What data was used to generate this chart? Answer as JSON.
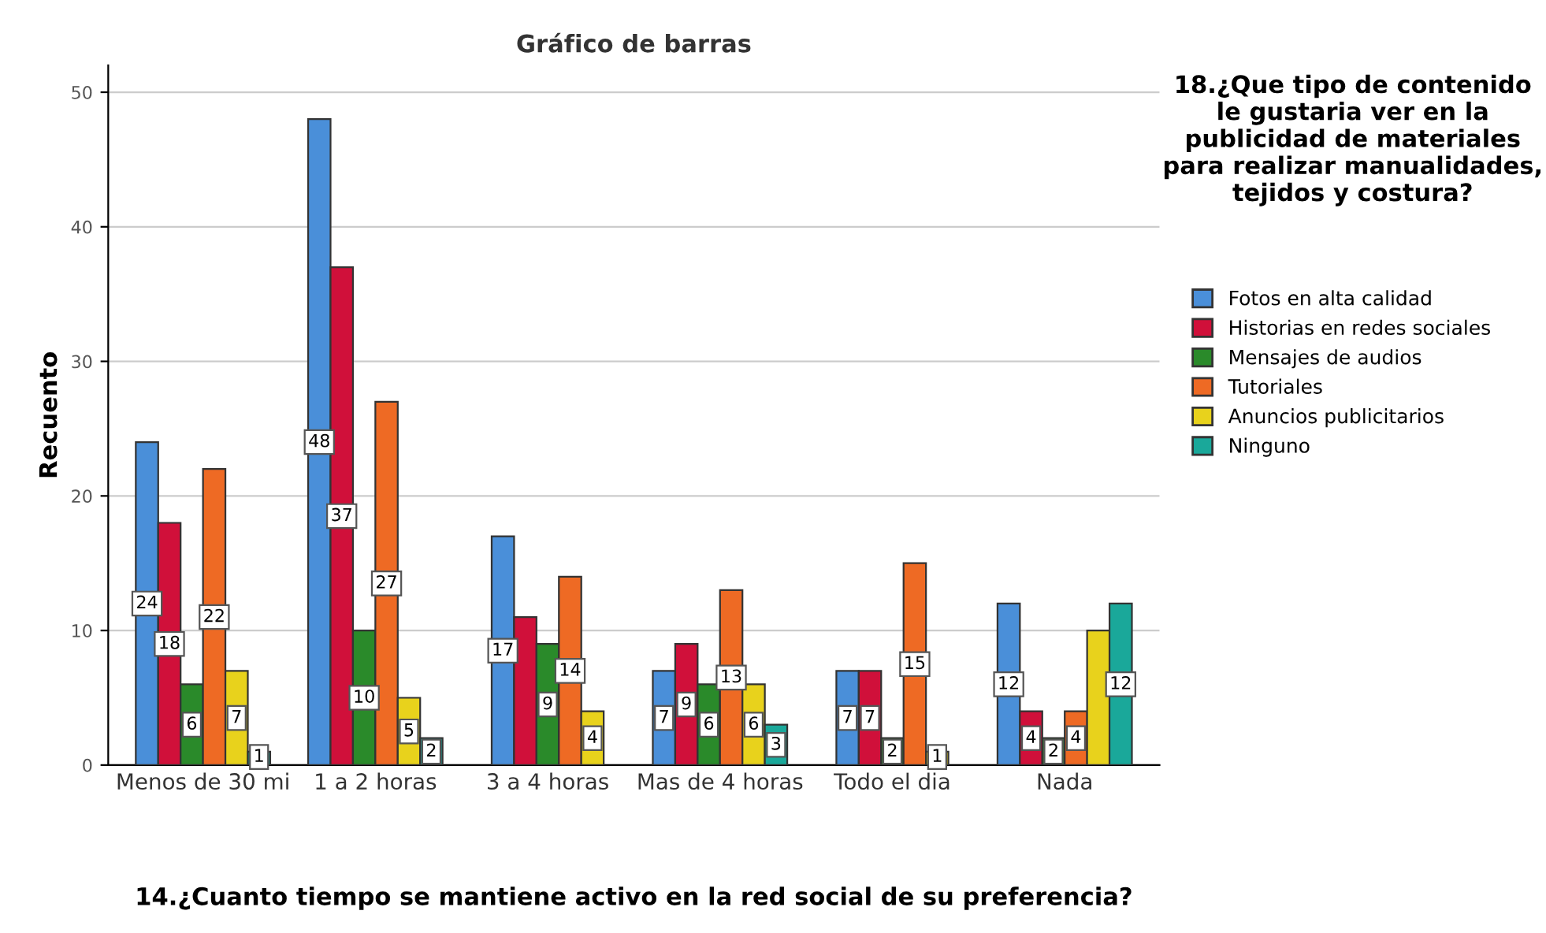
{
  "chart_data": {
    "type": "bar",
    "title": "Gráfico de barras",
    "xlabel": "14.¿Cuanto tiempo se mantiene activo en la red social de su preferencia?",
    "ylabel": "Recuento",
    "legend_title": "18.¿Que tipo de contenido le gustaria ver en la publicidad de materiales para realizar manualidades, tejidos y costura?",
    "categories": [
      "Menos de 30 mi",
      "1 a 2 horas",
      "3 a 4 horas",
      "Mas de 4 horas",
      "Todo el dia",
      "Nada"
    ],
    "series": [
      {
        "name": "Fotos en alta calidad",
        "color": "#4a8fd9",
        "values": [
          24,
          48,
          17,
          7,
          7,
          12
        ],
        "value_labels": [
          "24",
          "48",
          "17",
          "7",
          "7",
          "12"
        ]
      },
      {
        "name": "Historias en redes sociales",
        "color": "#d0103a",
        "values": [
          18,
          37,
          11,
          9,
          7,
          4
        ],
        "value_labels": [
          "18",
          "37",
          null,
          "9",
          "7",
          "4"
        ]
      },
      {
        "name": "Mensajes de audios",
        "color": "#2a8a2a",
        "values": [
          6,
          10,
          9,
          6,
          2,
          2
        ],
        "value_labels": [
          "6",
          "10",
          "9",
          "6",
          "2",
          "2"
        ]
      },
      {
        "name": "Tutoriales",
        "color": "#ee6a24",
        "values": [
          22,
          27,
          14,
          13,
          15,
          4
        ],
        "value_labels": [
          "22",
          "27",
          "14",
          "13",
          "15",
          "4"
        ]
      },
      {
        "name": "Anuncios publicitarios",
        "color": "#e8d21c",
        "values": [
          7,
          5,
          4,
          6,
          1,
          10
        ],
        "value_labels": [
          "7",
          "5",
          "4",
          "6",
          "1",
          null
        ]
      },
      {
        "name": "Ninguno",
        "color": "#1aa89a",
        "values": [
          1,
          2,
          null,
          3,
          null,
          12
        ],
        "value_labels": [
          "1",
          "2",
          null,
          "3",
          null,
          "12"
        ]
      }
    ],
    "ylim": [
      0,
      52
    ],
    "yticks": [
      0,
      10,
      20,
      30,
      40,
      50
    ],
    "grid": "y",
    "legend": "right"
  }
}
